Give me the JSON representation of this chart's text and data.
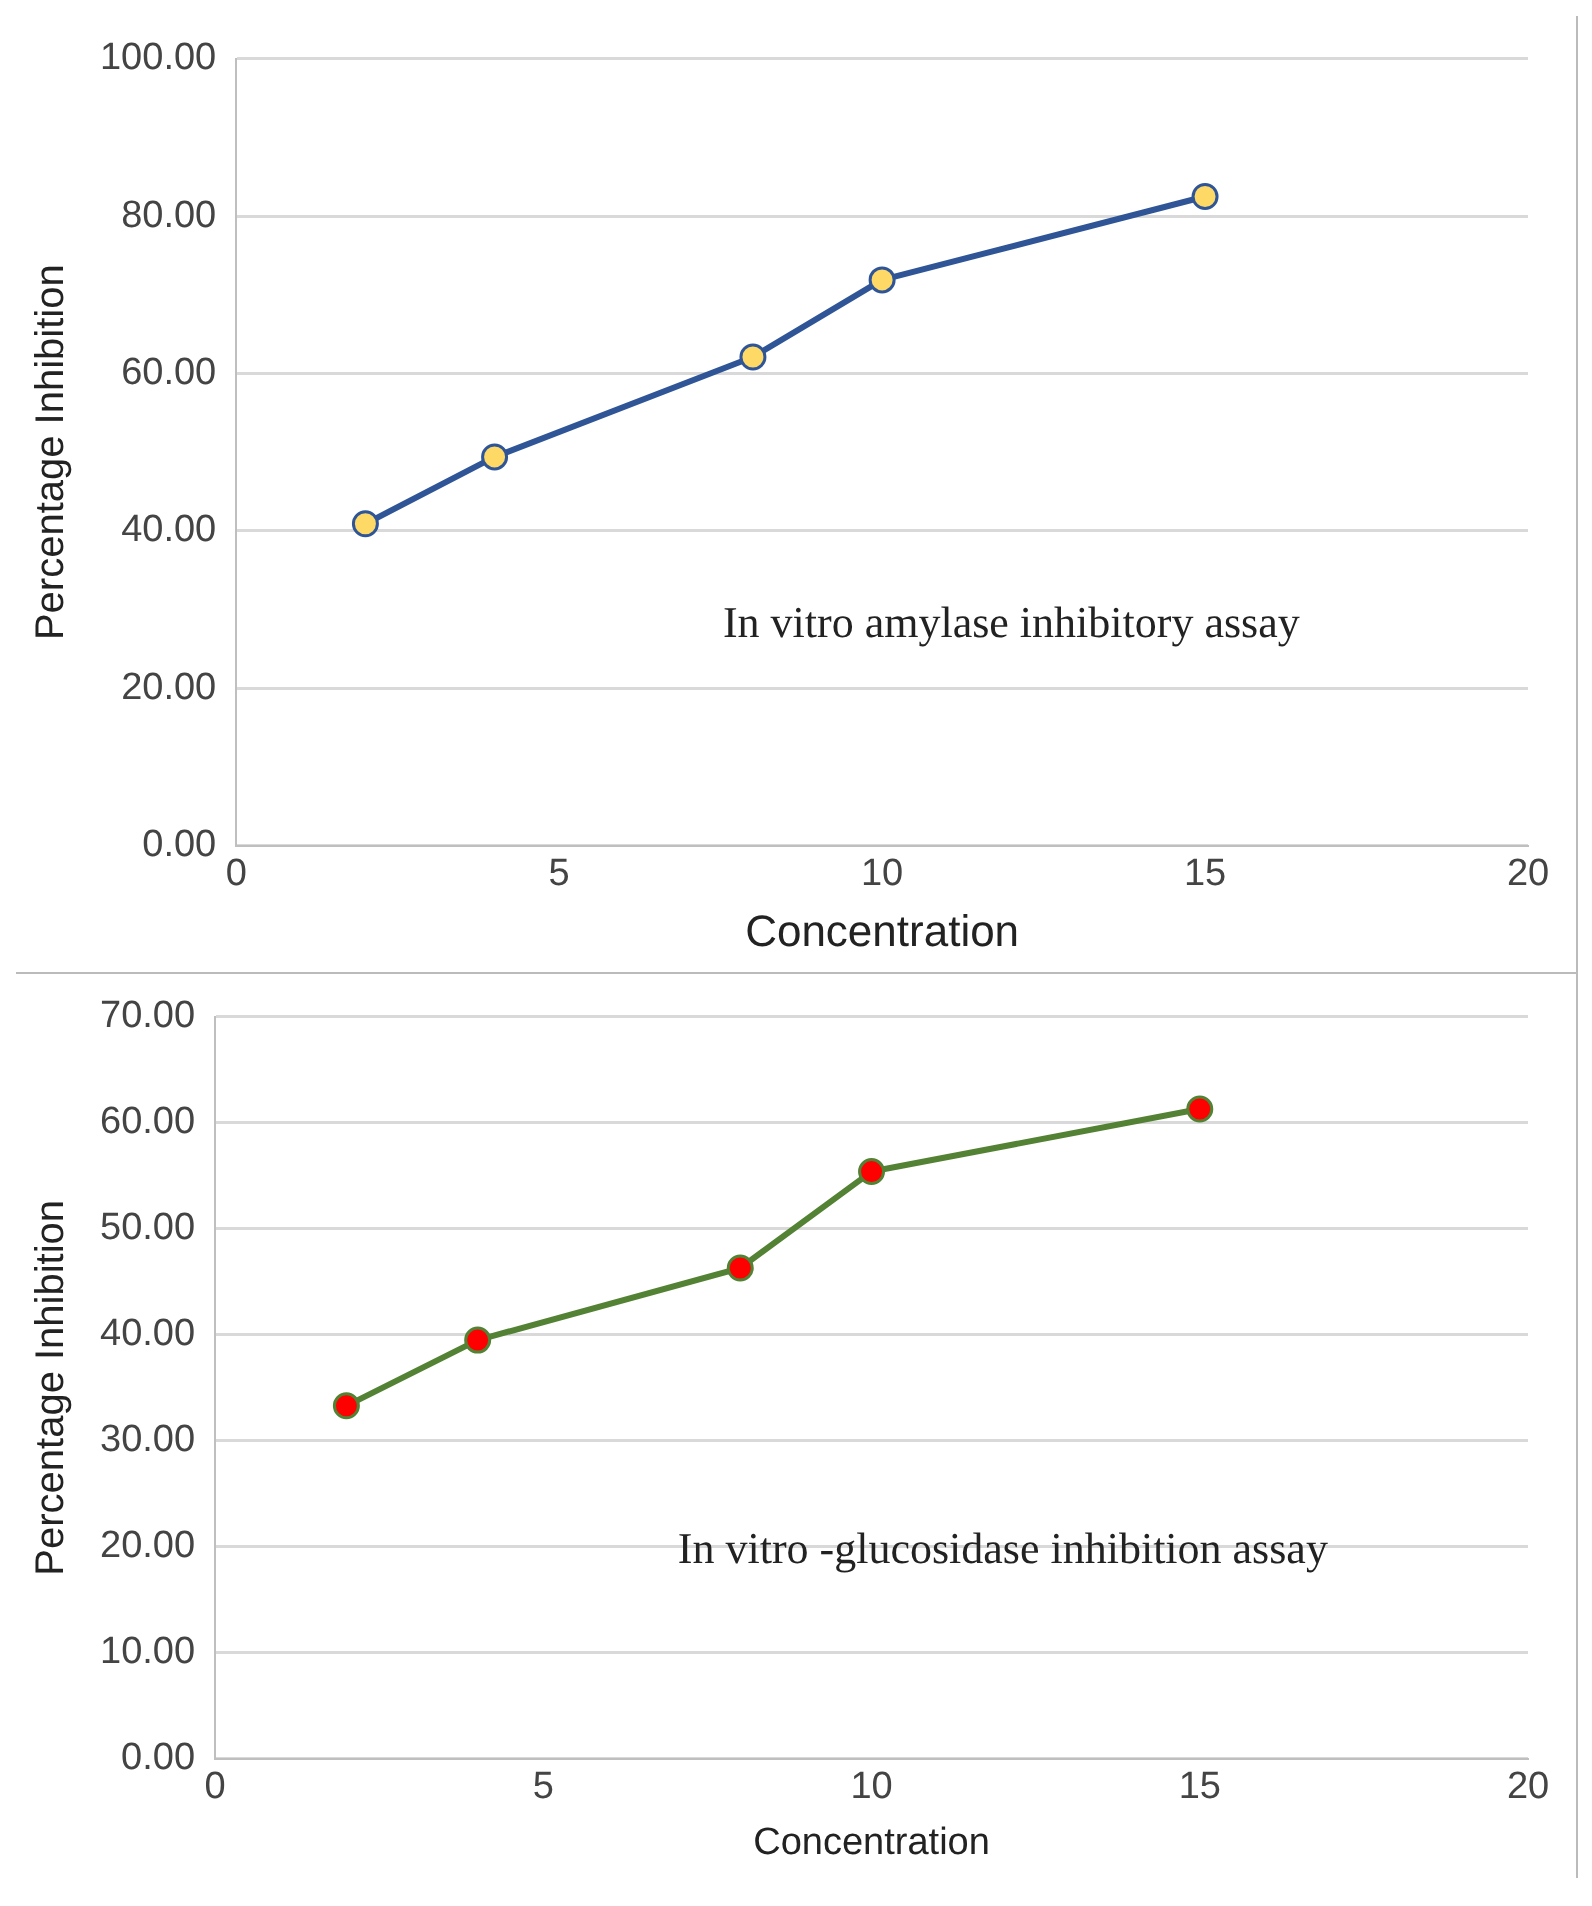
{
  "chart_data": [
    {
      "type": "line",
      "xlabel": "Concentration",
      "ylabel": "Percentage Inhibition",
      "x": [
        2,
        4,
        8,
        10,
        15
      ],
      "series": [
        {
          "color": "#2f5597",
          "values": [
            40.9,
            49.4,
            62.1,
            71.9,
            82.5
          ]
        }
      ],
      "xlim": [
        0,
        20
      ],
      "xticks": [
        0,
        5,
        10,
        15,
        20
      ],
      "ylim": [
        0,
        100
      ],
      "yticks": [
        {
          "value": 0,
          "label": "0.00"
        },
        {
          "value": 20,
          "label": "20.00"
        },
        {
          "value": 40,
          "label": "40.00"
        },
        {
          "value": 60,
          "label": "60.00"
        },
        {
          "value": 80,
          "label": "80.00"
        },
        {
          "value": 100,
          "label": "100.00"
        }
      ],
      "grid": "y",
      "marker": "circle",
      "legend": false,
      "annotations": [
        "In vitro amylase inhibitory assay"
      ]
    },
    {
      "type": "line",
      "xlabel": "Concentration",
      "ylabel": "Percentage Inhibition",
      "x": [
        2,
        4,
        8,
        10,
        15
      ],
      "series": [
        {
          "color": "#548235",
          "values": [
            33.3,
            39.5,
            46.3,
            55.4,
            61.3
          ]
        }
      ],
      "xlim": [
        0,
        20
      ],
      "xticks": [
        0,
        5,
        10,
        15,
        20
      ],
      "ylim": [
        0,
        70
      ],
      "yticks": [
        {
          "value": 0,
          "label": "0.00"
        },
        {
          "value": 10,
          "label": "10.00"
        },
        {
          "value": 20,
          "label": "20.00"
        },
        {
          "value": 30,
          "label": "30.00"
        },
        {
          "value": 40,
          "label": "40.00"
        },
        {
          "value": 50,
          "label": "50.00"
        },
        {
          "value": 60,
          "label": "60.00"
        },
        {
          "value": 70,
          "label": "70.00"
        }
      ],
      "grid": "y",
      "marker": "circle",
      "legend": false,
      "annotations": [
        "In vitro -glucosidase inhibition assay"
      ]
    }
  ]
}
